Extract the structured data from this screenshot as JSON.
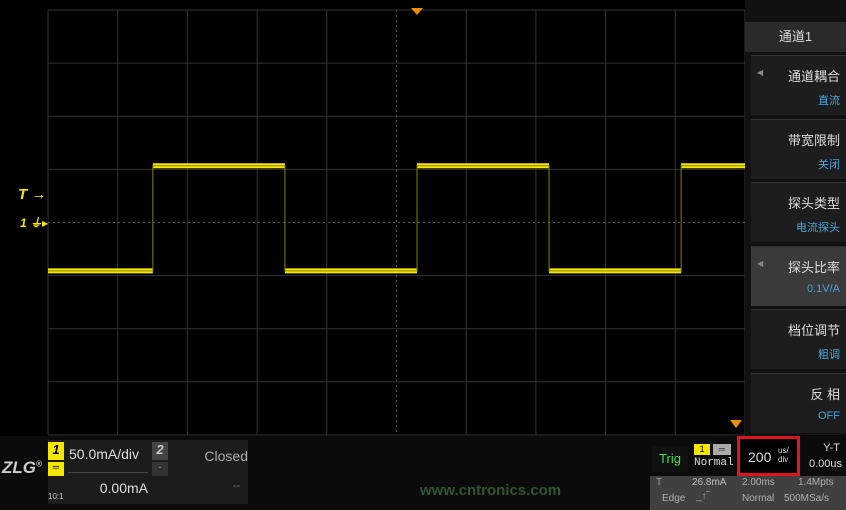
{
  "colors": {
    "trace": "#f5e600",
    "grid": "#3a3a3a",
    "accent_blue": "#4aa3d8",
    "trigger_green": "#3ee04a",
    "highlight": "#e0141e",
    "marker_orange": "#f08c00"
  },
  "markers": {
    "trigger_level": "T",
    "channel_ground": "1"
  },
  "waveform": {
    "unit": "mA",
    "time_unit": "us",
    "high": 53,
    "low": -46,
    "edges_us": [
      -758,
      -379,
      0,
      379,
      758
    ],
    "start_level": "low"
  },
  "sidebar": {
    "title": "通道1",
    "items": [
      {
        "label": "通道耦合",
        "value": "直流",
        "arrow": true
      },
      {
        "label": "带宽限制",
        "value": "关闭",
        "arrow": false
      },
      {
        "label": "探头类型",
        "value": "电流探头",
        "arrow": false
      },
      {
        "label": "探头比率",
        "value": "0.1V/A",
        "arrow": true,
        "selected": true
      },
      {
        "label": "档位调节",
        "value": "粗调",
        "arrow": false
      },
      {
        "label": "反 相",
        "value": "OFF",
        "arrow": false
      }
    ]
  },
  "bottom": {
    "logo": "ZLG",
    "ch1": {
      "num": "1",
      "scale": "50.0mA/div",
      "offset": "0.00mA",
      "probe": "10:1"
    },
    "ch2": {
      "num": "2",
      "status": "Closed",
      "offset": "--",
      "coupling": "-"
    },
    "trig": {
      "label": "Trig",
      "source": "1",
      "mode": "Normal",
      "type_label": "T",
      "level": "26.8mA",
      "type": "Edge",
      "sweep": "Normal"
    },
    "timebase": {
      "value": "200",
      "unit_top": "us/",
      "unit_bottom": "div",
      "delay": "2.00ms"
    },
    "mode": {
      "label": "Y-T",
      "offset": "0.00us",
      "depth": "1.4Mpts",
      "rate": "500MSa/s"
    },
    "watermark": "www.cntronics.com"
  }
}
